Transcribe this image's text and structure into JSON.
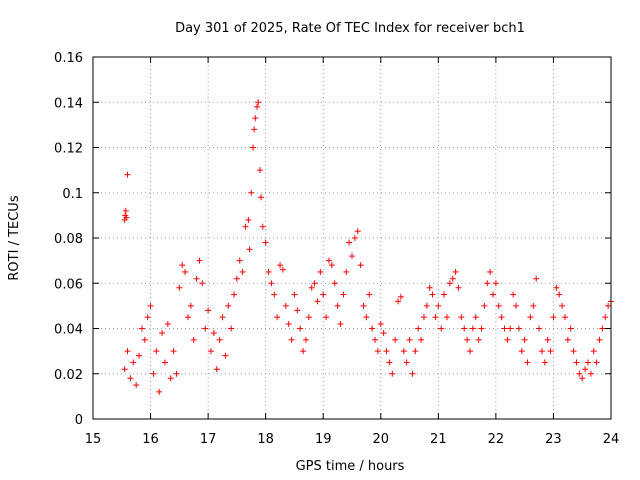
{
  "chart_data": {
    "type": "scatter",
    "title": "Day 301 of 2025, Rate Of TEC Index for receiver bch1",
    "xlabel": "GPS time / hours",
    "ylabel": "ROTI / TECUs",
    "xlim": [
      15,
      24
    ],
    "ylim": [
      0,
      0.16
    ],
    "grid": true,
    "xticks": [
      15,
      16,
      17,
      18,
      19,
      20,
      21,
      22,
      23,
      24
    ],
    "xtick_labels": [
      "15",
      "16",
      "17",
      "18",
      "19",
      "20",
      "21",
      "22",
      "23",
      "24"
    ],
    "yticks": [
      0,
      0.02,
      0.04,
      0.06,
      0.08,
      0.1,
      0.12,
      0.14,
      0.16
    ],
    "ytick_labels": [
      "0",
      "0.02",
      "0.04",
      "0.06",
      "0.08",
      "0.1",
      "0.12",
      "0.14",
      "0.16"
    ],
    "marker": "+",
    "color": "#ff0000",
    "series": [
      {
        "name": "ROTI",
        "points": [
          [
            15.55,
            0.088
          ],
          [
            15.56,
            0.09
          ],
          [
            15.57,
            0.092
          ],
          [
            15.58,
            0.089
          ],
          [
            15.6,
            0.108
          ],
          [
            15.55,
            0.022
          ],
          [
            15.6,
            0.03
          ],
          [
            15.65,
            0.018
          ],
          [
            15.7,
            0.025
          ],
          [
            15.75,
            0.015
          ],
          [
            15.8,
            0.028
          ],
          [
            15.85,
            0.04
          ],
          [
            15.9,
            0.035
          ],
          [
            15.95,
            0.045
          ],
          [
            16.0,
            0.05
          ],
          [
            16.05,
            0.02
          ],
          [
            16.1,
            0.03
          ],
          [
            16.15,
            0.012
          ],
          [
            16.2,
            0.038
          ],
          [
            16.25,
            0.025
          ],
          [
            16.3,
            0.042
          ],
          [
            16.35,
            0.018
          ],
          [
            16.4,
            0.03
          ],
          [
            16.45,
            0.02
          ],
          [
            16.5,
            0.058
          ],
          [
            16.55,
            0.068
          ],
          [
            16.6,
            0.065
          ],
          [
            16.65,
            0.045
          ],
          [
            16.7,
            0.05
          ],
          [
            16.75,
            0.035
          ],
          [
            16.8,
            0.062
          ],
          [
            16.85,
            0.07
          ],
          [
            16.9,
            0.06
          ],
          [
            16.95,
            0.04
          ],
          [
            17.0,
            0.048
          ],
          [
            17.05,
            0.03
          ],
          [
            17.1,
            0.038
          ],
          [
            17.15,
            0.022
          ],
          [
            17.2,
            0.035
          ],
          [
            17.25,
            0.045
          ],
          [
            17.3,
            0.028
          ],
          [
            17.35,
            0.05
          ],
          [
            17.4,
            0.04
          ],
          [
            17.45,
            0.055
          ],
          [
            17.5,
            0.062
          ],
          [
            17.55,
            0.07
          ],
          [
            17.6,
            0.065
          ],
          [
            17.65,
            0.085
          ],
          [
            17.7,
            0.088
          ],
          [
            17.72,
            0.075
          ],
          [
            17.75,
            0.1
          ],
          [
            17.78,
            0.12
          ],
          [
            17.8,
            0.128
          ],
          [
            17.82,
            0.133
          ],
          [
            17.85,
            0.138
          ],
          [
            17.87,
            0.14
          ],
          [
            17.9,
            0.11
          ],
          [
            17.92,
            0.098
          ],
          [
            17.95,
            0.085
          ],
          [
            18.0,
            0.078
          ],
          [
            18.05,
            0.065
          ],
          [
            18.1,
            0.06
          ],
          [
            18.15,
            0.055
          ],
          [
            18.2,
            0.045
          ],
          [
            18.25,
            0.068
          ],
          [
            18.3,
            0.066
          ],
          [
            18.35,
            0.05
          ],
          [
            18.4,
            0.042
          ],
          [
            18.45,
            0.035
          ],
          [
            18.5,
            0.055
          ],
          [
            18.55,
            0.048
          ],
          [
            18.6,
            0.04
          ],
          [
            18.65,
            0.03
          ],
          [
            18.7,
            0.035
          ],
          [
            18.75,
            0.045
          ],
          [
            18.8,
            0.058
          ],
          [
            18.85,
            0.06
          ],
          [
            18.9,
            0.052
          ],
          [
            18.95,
            0.065
          ],
          [
            19.0,
            0.055
          ],
          [
            19.05,
            0.045
          ],
          [
            19.1,
            0.07
          ],
          [
            19.15,
            0.068
          ],
          [
            19.2,
            0.06
          ],
          [
            19.25,
            0.05
          ],
          [
            19.3,
            0.042
          ],
          [
            19.35,
            0.055
          ],
          [
            19.4,
            0.065
          ],
          [
            19.45,
            0.078
          ],
          [
            19.5,
            0.072
          ],
          [
            19.55,
            0.08
          ],
          [
            19.6,
            0.083
          ],
          [
            19.65,
            0.068
          ],
          [
            19.7,
            0.05
          ],
          [
            19.75,
            0.045
          ],
          [
            19.8,
            0.055
          ],
          [
            19.85,
            0.04
          ],
          [
            19.9,
            0.035
          ],
          [
            19.95,
            0.03
          ],
          [
            20.0,
            0.042
          ],
          [
            20.05,
            0.038
          ],
          [
            20.1,
            0.03
          ],
          [
            20.15,
            0.025
          ],
          [
            20.2,
            0.02
          ],
          [
            20.25,
            0.035
          ],
          [
            20.3,
            0.052
          ],
          [
            20.35,
            0.054
          ],
          [
            20.4,
            0.03
          ],
          [
            20.45,
            0.025
          ],
          [
            20.5,
            0.035
          ],
          [
            20.55,
            0.02
          ],
          [
            20.6,
            0.03
          ],
          [
            20.65,
            0.04
          ],
          [
            20.7,
            0.035
          ],
          [
            20.75,
            0.045
          ],
          [
            20.8,
            0.05
          ],
          [
            20.85,
            0.058
          ],
          [
            20.9,
            0.055
          ],
          [
            20.95,
            0.045
          ],
          [
            21.0,
            0.05
          ],
          [
            21.05,
            0.04
          ],
          [
            21.1,
            0.055
          ],
          [
            21.15,
            0.045
          ],
          [
            21.2,
            0.06
          ],
          [
            21.25,
            0.062
          ],
          [
            21.3,
            0.065
          ],
          [
            21.35,
            0.058
          ],
          [
            21.4,
            0.045
          ],
          [
            21.45,
            0.04
          ],
          [
            21.5,
            0.035
          ],
          [
            21.55,
            0.03
          ],
          [
            21.6,
            0.04
          ],
          [
            21.65,
            0.045
          ],
          [
            21.7,
            0.035
          ],
          [
            21.75,
            0.04
          ],
          [
            21.8,
            0.05
          ],
          [
            21.85,
            0.06
          ],
          [
            21.9,
            0.065
          ],
          [
            21.95,
            0.055
          ],
          [
            22.0,
            0.06
          ],
          [
            22.05,
            0.05
          ],
          [
            22.1,
            0.045
          ],
          [
            22.15,
            0.04
          ],
          [
            22.2,
            0.035
          ],
          [
            22.25,
            0.04
          ],
          [
            22.3,
            0.055
          ],
          [
            22.35,
            0.05
          ],
          [
            22.4,
            0.04
          ],
          [
            22.45,
            0.03
          ],
          [
            22.5,
            0.035
          ],
          [
            22.55,
            0.025
          ],
          [
            22.6,
            0.045
          ],
          [
            22.65,
            0.05
          ],
          [
            22.7,
            0.062
          ],
          [
            22.75,
            0.04
          ],
          [
            22.8,
            0.03
          ],
          [
            22.85,
            0.025
          ],
          [
            22.9,
            0.035
          ],
          [
            22.95,
            0.03
          ],
          [
            23.0,
            0.045
          ],
          [
            23.05,
            0.058
          ],
          [
            23.1,
            0.055
          ],
          [
            23.15,
            0.05
          ],
          [
            23.2,
            0.045
          ],
          [
            23.25,
            0.035
          ],
          [
            23.3,
            0.04
          ],
          [
            23.35,
            0.03
          ],
          [
            23.4,
            0.025
          ],
          [
            23.45,
            0.02
          ],
          [
            23.5,
            0.018
          ],
          [
            23.55,
            0.022
          ],
          [
            23.6,
            0.025
          ],
          [
            23.65,
            0.02
          ],
          [
            23.7,
            0.03
          ],
          [
            23.75,
            0.025
          ],
          [
            23.8,
            0.035
          ],
          [
            23.85,
            0.04
          ],
          [
            23.9,
            0.045
          ],
          [
            23.95,
            0.05
          ],
          [
            24.0,
            0.052
          ]
        ]
      }
    ]
  }
}
